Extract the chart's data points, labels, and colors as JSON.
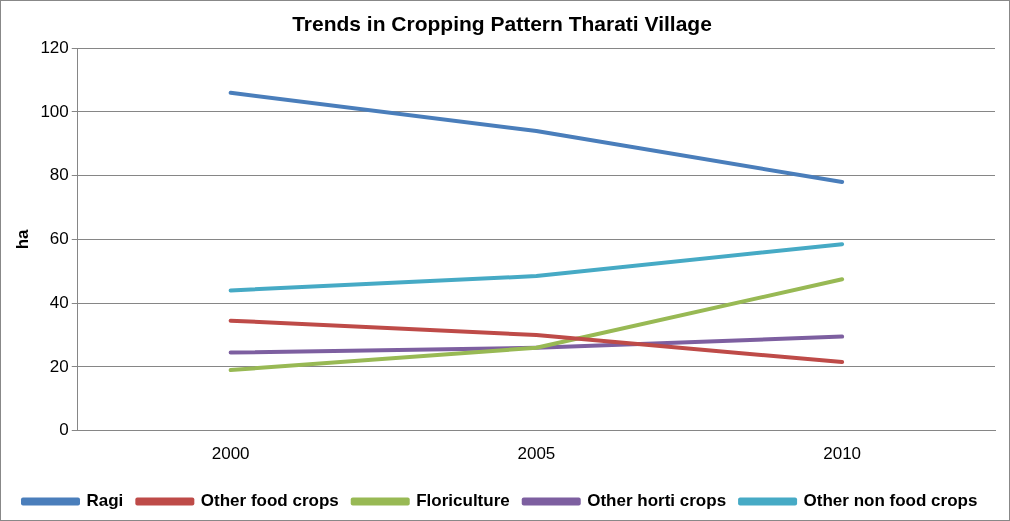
{
  "chart_data": {
    "type": "line",
    "title": "Trends in Cropping Pattern Tharati Village",
    "ylabel": "ha",
    "categories": [
      "2000",
      "2005",
      "2010"
    ],
    "series": [
      {
        "name": "Ragi",
        "color": "#4a7ebb",
        "values": [
          106,
          94,
          78
        ]
      },
      {
        "name": "Other food crops",
        "color": "#be4b48",
        "values": [
          34.5,
          30,
          21.5
        ]
      },
      {
        "name": "Floriculture",
        "color": "#98b954",
        "values": [
          19,
          26,
          47.5
        ]
      },
      {
        "name": "Other horti crops",
        "color": "#7d5fa0",
        "values": [
          24.5,
          26,
          29.5
        ]
      },
      {
        "name": "Other non food crops",
        "color": "#46aac5",
        "values": [
          44,
          48.5,
          58.5
        ]
      }
    ],
    "ylim": [
      0,
      120
    ],
    "yticks": [
      0,
      20,
      40,
      60,
      80,
      100,
      120
    ],
    "grid": "y",
    "legend": "bottom",
    "marker": "none",
    "line_style": "solid"
  }
}
